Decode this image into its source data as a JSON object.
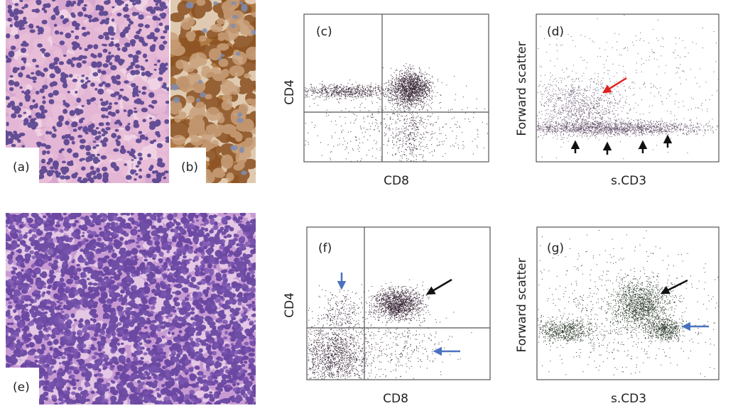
{
  "panels": [
    {
      "label": "(a)"
    },
    {
      "label": "(b)"
    },
    {
      "label": "(c)",
      "x_label": "CD8",
      "y_label": "CD4"
    },
    {
      "label": "(d)",
      "x_label": "s.CD3",
      "y_label": "Forward scatter"
    },
    {
      "label": "(e)"
    },
    {
      "label": "(f)",
      "x_label": "CD8",
      "y_label": "CD4"
    },
    {
      "label": "(g)",
      "x_label": "s.CD3",
      "y_label": "Forward scatter"
    }
  ]
}
